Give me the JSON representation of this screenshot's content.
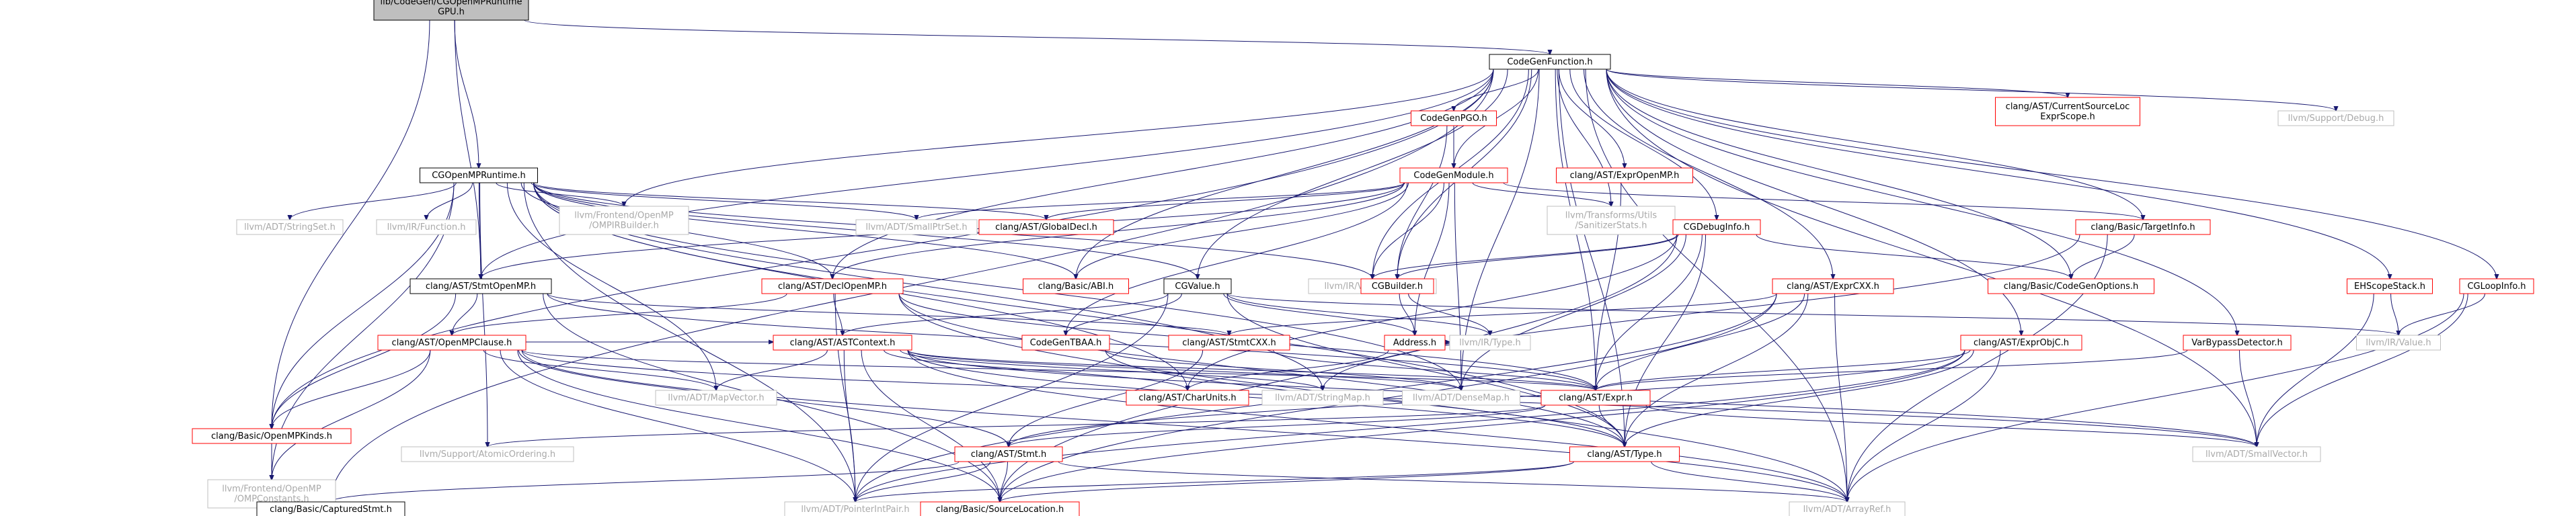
{
  "title": "Include dependency graph for lib/CodeGen/CGOpenMPRuntimeGPU.h",
  "colors": {
    "edge": "#191970",
    "text_default": "#000000",
    "text_missing": "#a9a9a9",
    "text_link": "#000000",
    "border_link": "#ff0000",
    "border_root": "#000000",
    "fill_root": "#bfbfbf",
    "border_gray": "#bfbfbf",
    "border_dark": "#000000",
    "fill": "#ffffff"
  },
  "nodes": [
    {
      "id": "root",
      "lines": [
        "lib/CodeGen/CGOpenMPRuntime",
        "GPU.h"
      ],
      "style": "root"
    },
    {
      "id": "CodeGenFunction",
      "lines": [
        "CodeGenFunction.h"
      ],
      "style": "dark"
    },
    {
      "id": "CGOpenMPRuntime",
      "lines": [
        "CGOpenMPRuntime.h"
      ],
      "style": "dark"
    },
    {
      "id": "StmtOpenMP",
      "lines": [
        "clang/AST/StmtOpenMP.h"
      ],
      "style": "dark"
    },
    {
      "id": "OpenMPKinds",
      "lines": [
        "clang/Basic/OpenMPKinds.h"
      ],
      "style": "red"
    },
    {
      "id": "StringSet",
      "lines": [
        "llvm/ADT/StringSet.h"
      ],
      "style": "gray"
    },
    {
      "id": "Function",
      "lines": [
        "llvm/IR/Function.h"
      ],
      "style": "gray"
    },
    {
      "id": "OMPIRBuilder",
      "lines": [
        "llvm/Frontend/OpenMP",
        "/OMPIRBuilder.h"
      ],
      "style": "gray"
    },
    {
      "id": "SmallPtrSet",
      "lines": [
        "llvm/ADT/SmallPtrSet.h"
      ],
      "style": "gray"
    },
    {
      "id": "GlobalDecl",
      "lines": [
        "clang/AST/GlobalDecl.h"
      ],
      "style": "red"
    },
    {
      "id": "DeclOpenMP",
      "lines": [
        "clang/AST/DeclOpenMP.h"
      ],
      "style": "red"
    },
    {
      "id": "ABI",
      "lines": [
        "clang/Basic/ABI.h"
      ],
      "style": "red"
    },
    {
      "id": "CGValue",
      "lines": [
        "CGValue.h"
      ],
      "style": "dark"
    },
    {
      "id": "ValueHandle",
      "lines": [
        "llvm/IR/ValueHandle.h"
      ],
      "style": "gray"
    },
    {
      "id": "CodeGenPGO",
      "lines": [
        "CodeGenPGO.h"
      ],
      "style": "red"
    },
    {
      "id": "CodeGenModule",
      "lines": [
        "CodeGenModule.h"
      ],
      "style": "red"
    },
    {
      "id": "ExprOpenMP",
      "lines": [
        "clang/AST/ExprOpenMP.h"
      ],
      "style": "red"
    },
    {
      "id": "CurrentSourceLoc",
      "lines": [
        "clang/AST/CurrentSourceLoc",
        "ExprScope.h"
      ],
      "style": "red"
    },
    {
      "id": "Debug",
      "lines": [
        "llvm/Support/Debug.h"
      ],
      "style": "gray"
    },
    {
      "id": "SanitizerStats",
      "lines": [
        "llvm/Transforms/Utils",
        "/SanitizerStats.h"
      ],
      "style": "gray"
    },
    {
      "id": "TargetInfo",
      "lines": [
        "clang/Basic/TargetInfo.h"
      ],
      "style": "red"
    },
    {
      "id": "CGDebugInfo",
      "lines": [
        "CGDebugInfo.h"
      ],
      "style": "red"
    },
    {
      "id": "CodeGenOptions",
      "lines": [
        "clang/Basic/CodeGenOptions.h"
      ],
      "style": "red"
    },
    {
      "id": "CGBuilder",
      "lines": [
        "CGBuilder.h"
      ],
      "style": "red"
    },
    {
      "id": "ExprCXX",
      "lines": [
        "clang/AST/ExprCXX.h"
      ],
      "style": "red"
    },
    {
      "id": "EHScopeStack",
      "lines": [
        "EHScopeStack.h"
      ],
      "style": "red"
    },
    {
      "id": "CGLoopInfo",
      "lines": [
        "CGLoopInfo.h"
      ],
      "style": "red"
    },
    {
      "id": "OpenMPClause",
      "lines": [
        "clang/AST/OpenMPClause.h"
      ],
      "style": "red"
    },
    {
      "id": "ASTContext",
      "lines": [
        "clang/AST/ASTContext.h"
      ],
      "style": "red"
    },
    {
      "id": "CodeGenTBAA",
      "lines": [
        "CodeGenTBAA.h"
      ],
      "style": "red"
    },
    {
      "id": "Address",
      "lines": [
        "Address.h"
      ],
      "style": "red"
    },
    {
      "id": "Type_IR",
      "lines": [
        "llvm/IR/Type.h"
      ],
      "style": "gray"
    },
    {
      "id": "StmtCXX",
      "lines": [
        "clang/AST/StmtCXX.h"
      ],
      "style": "red"
    },
    {
      "id": "ExprObjC",
      "lines": [
        "clang/AST/ExprObjC.h"
      ],
      "style": "red"
    },
    {
      "id": "VarBypassDetector",
      "lines": [
        "VarBypassDetector.h"
      ],
      "style": "red"
    },
    {
      "id": "Value_IR",
      "lines": [
        "llvm/IR/Value.h"
      ],
      "style": "gray"
    },
    {
      "id": "OMPConstants",
      "lines": [
        "llvm/Frontend/OpenMP",
        "/OMPConstants.h"
      ],
      "style": "gray"
    },
    {
      "id": "MapVector",
      "lines": [
        "llvm/ADT/MapVector.h"
      ],
      "style": "gray"
    },
    {
      "id": "CharUnits",
      "lines": [
        "clang/AST/CharUnits.h"
      ],
      "style": "red"
    },
    {
      "id": "StringMap",
      "lines": [
        "llvm/ADT/StringMap.h"
      ],
      "style": "gray"
    },
    {
      "id": "DenseMap",
      "lines": [
        "llvm/ADT/DenseMap.h"
      ],
      "style": "gray"
    },
    {
      "id": "Expr",
      "lines": [
        "clang/AST/Expr.h"
      ],
      "style": "red"
    },
    {
      "id": "AtomicOrdering",
      "lines": [
        "llvm/Support/AtomicOrdering.h"
      ],
      "style": "gray"
    },
    {
      "id": "Stmt",
      "lines": [
        "clang/AST/Stmt.h"
      ],
      "style": "red"
    },
    {
      "id": "Type_AST",
      "lines": [
        "clang/AST/Type.h"
      ],
      "style": "red"
    },
    {
      "id": "SmallVector",
      "lines": [
        "llvm/ADT/SmallVector.h"
      ],
      "style": "gray"
    },
    {
      "id": "CapturedStmt",
      "lines": [
        "clang/Basic/CapturedStmt.h"
      ],
      "style": "dark"
    },
    {
      "id": "PointerIntPair",
      "lines": [
        "llvm/ADT/PointerIntPair.h"
      ],
      "style": "gray"
    },
    {
      "id": "SourceLocation",
      "lines": [
        "clang/Basic/SourceLocation.h"
      ],
      "style": "red"
    },
    {
      "id": "ArrayRef",
      "lines": [
        "llvm/ADT/ArrayRef.h"
      ],
      "style": "gray"
    }
  ],
  "edges": [
    [
      "root",
      "CodeGenFunction"
    ],
    [
      "root",
      "CGOpenMPRuntime"
    ],
    [
      "root",
      "StmtOpenMP"
    ],
    [
      "root",
      "OpenMPKinds"
    ],
    [
      "CodeGenFunction",
      "CodeGenPGO"
    ],
    [
      "CodeGenFunction",
      "CodeGenModule"
    ],
    [
      "CodeGenFunction",
      "ExprOpenMP"
    ],
    [
      "CodeGenFunction",
      "CurrentSourceLoc"
    ],
    [
      "CodeGenFunction",
      "Debug"
    ],
    [
      "CodeGenFunction",
      "SanitizerStats"
    ],
    [
      "CodeGenFunction",
      "TargetInfo"
    ],
    [
      "CodeGenFunction",
      "CGDebugInfo"
    ],
    [
      "CodeGenFunction",
      "CodeGenOptions"
    ],
    [
      "CodeGenFunction",
      "CGBuilder"
    ],
    [
      "CodeGenFunction",
      "ExprCXX"
    ],
    [
      "CodeGenFunction",
      "EHScopeStack"
    ],
    [
      "CodeGenFunction",
      "CGLoopInfo"
    ],
    [
      "CodeGenFunction",
      "VarBypassDetector"
    ],
    [
      "CodeGenFunction",
      "ExprObjC"
    ],
    [
      "CodeGenFunction",
      "CGValue"
    ],
    [
      "CodeGenFunction",
      "ABI"
    ],
    [
      "CodeGenFunction",
      "ValueHandle"
    ],
    [
      "CodeGenFunction",
      "OMPIRBuilder"
    ],
    [
      "CodeGenFunction",
      "CapturedStmt"
    ],
    [
      "CodeGenFunction",
      "Type_AST"
    ],
    [
      "CodeGenFunction",
      "SmallVector"
    ],
    [
      "CodeGenFunction",
      "ArrayRef"
    ],
    [
      "CodeGenFunction",
      "StmtOpenMP"
    ],
    [
      "CodeGenFunction",
      "OpenMPKinds"
    ],
    [
      "CodeGenFunction",
      "DeclOpenMP"
    ],
    [
      "CodeGenFunction",
      "Expr"
    ],
    [
      "CodeGenFunction",
      "DenseMap"
    ],
    [
      "CGOpenMPRuntime",
      "StringSet"
    ],
    [
      "CGOpenMPRuntime",
      "Function"
    ],
    [
      "CGOpenMPRuntime",
      "OMPIRBuilder"
    ],
    [
      "CGOpenMPRuntime",
      "SmallPtrSet"
    ],
    [
      "CGOpenMPRuntime",
      "GlobalDecl"
    ],
    [
      "CGOpenMPRuntime",
      "ABI"
    ],
    [
      "CGOpenMPRuntime",
      "CGValue"
    ],
    [
      "CGOpenMPRuntime",
      "ValueHandle"
    ],
    [
      "CGOpenMPRuntime",
      "StmtOpenMP"
    ],
    [
      "CGOpenMPRuntime",
      "DeclOpenMP"
    ],
    [
      "CGOpenMPRuntime",
      "OpenMPKinds"
    ],
    [
      "CGOpenMPRuntime",
      "OMPConstants"
    ],
    [
      "CGOpenMPRuntime",
      "MapVector"
    ],
    [
      "CGOpenMPRuntime",
      "DenseMap"
    ],
    [
      "CGOpenMPRuntime",
      "StringMap"
    ],
    [
      "CGOpenMPRuntime",
      "AtomicOrdering"
    ],
    [
      "CGOpenMPRuntime",
      "Type_AST"
    ],
    [
      "CGOpenMPRuntime",
      "PointerIntPair"
    ],
    [
      "CGOpenMPRuntime",
      "CharUnits"
    ],
    [
      "CodeGenPGO",
      "CodeGenModule"
    ],
    [
      "CodeGenPGO",
      "CGBuilder"
    ],
    [
      "CodeGenModule",
      "GlobalDecl"
    ],
    [
      "CodeGenModule",
      "SmallPtrSet"
    ],
    [
      "CodeGenModule",
      "SanitizerStats"
    ],
    [
      "CodeGenModule",
      "TargetInfo"
    ],
    [
      "CodeGenModule",
      "ValueHandle"
    ],
    [
      "CodeGenModule",
      "ABI"
    ],
    [
      "CodeGenModule",
      "DeclOpenMP"
    ],
    [
      "CodeGenModule",
      "StmtOpenMP"
    ],
    [
      "CodeGenModule",
      "CodeGenTBAA"
    ],
    [
      "CodeGenModule",
      "Address"
    ],
    [
      "CodeGenModule",
      "DenseMap"
    ],
    [
      "ExprOpenMP",
      "Expr"
    ],
    [
      "TargetInfo",
      "CodeGenOptions"
    ],
    [
      "TargetInfo",
      "ArrayRef"
    ],
    [
      "TargetInfo",
      "StringMap"
    ],
    [
      "CGDebugInfo",
      "CGBuilder"
    ],
    [
      "CGDebugInfo",
      "CodeGenOptions"
    ],
    [
      "CGDebugInfo",
      "ValueHandle"
    ],
    [
      "CGDebugInfo",
      "Expr"
    ],
    [
      "CGDebugInfo",
      "Type_AST"
    ],
    [
      "CGDebugInfo",
      "DenseMap"
    ],
    [
      "CGDebugInfo",
      "SourceLocation"
    ],
    [
      "CGDebugInfo",
      "CharUnits"
    ],
    [
      "CGBuilder",
      "Address"
    ],
    [
      "CGBuilder",
      "Type_IR"
    ],
    [
      "ExprCXX",
      "StmtCXX"
    ],
    [
      "ExprCXX",
      "Expr"
    ],
    [
      "ExprCXX",
      "Type_AST"
    ],
    [
      "ExprCXX",
      "SourceLocation"
    ],
    [
      "ExprCXX",
      "ArrayRef"
    ],
    [
      "ExprCXX",
      "PointerIntPair"
    ],
    [
      "EHScopeStack",
      "SmallVector"
    ],
    [
      "EHScopeStack",
      "Value_IR"
    ],
    [
      "CGLoopInfo",
      "SmallVector"
    ],
    [
      "CGLoopInfo",
      "ArrayRef"
    ],
    [
      "CGLoopInfo",
      "Value_IR"
    ],
    [
      "VarBypassDetector",
      "SmallVector"
    ],
    [
      "VarBypassDetector",
      "Expr"
    ],
    [
      "ExprObjC",
      "Expr"
    ],
    [
      "ExprObjC",
      "Type_AST"
    ],
    [
      "ExprObjC",
      "SourceLocation"
    ],
    [
      "ExprObjC",
      "ArrayRef"
    ],
    [
      "ExprObjC",
      "PointerIntPair"
    ],
    [
      "ExprObjC",
      "Stmt"
    ],
    [
      "CGValue",
      "ASTContext"
    ],
    [
      "CGValue",
      "CodeGenTBAA"
    ],
    [
      "CGValue",
      "Address"
    ],
    [
      "CGValue",
      "Value_IR"
    ],
    [
      "CGValue",
      "Type_IR"
    ],
    [
      "CGValue",
      "Type_AST"
    ],
    [
      "CGValue",
      "PointerIntPair"
    ],
    [
      "StmtOpenMP",
      "OpenMPClause"
    ],
    [
      "StmtOpenMP",
      "StmtCXX"
    ],
    [
      "StmtOpenMP",
      "Expr"
    ],
    [
      "StmtOpenMP",
      "OpenMPKinds"
    ],
    [
      "StmtOpenMP",
      "SourceLocation"
    ],
    [
      "DeclOpenMP",
      "ASTContext"
    ],
    [
      "DeclOpenMP",
      "OpenMPClause"
    ],
    [
      "DeclOpenMP",
      "Expr"
    ],
    [
      "DeclOpenMP",
      "Type_AST"
    ],
    [
      "DeclOpenMP",
      "ArrayRef"
    ],
    [
      "DeclOpenMP",
      "PointerIntPair"
    ],
    [
      "OpenMPClause",
      "OpenMPKinds"
    ],
    [
      "OpenMPClause",
      "OMPConstants"
    ],
    [
      "OpenMPClause",
      "MapVector"
    ],
    [
      "OpenMPClause",
      "Expr"
    ],
    [
      "OpenMPClause",
      "Stmt"
    ],
    [
      "OpenMPClause",
      "SourceLocation"
    ],
    [
      "OpenMPClause",
      "ArrayRef"
    ],
    [
      "OpenMPClause",
      "PointerIntPair"
    ],
    [
      "OpenMPClause",
      "SmallVector"
    ],
    [
      "OpenMPClause",
      "ASTContext"
    ],
    [
      "ASTContext",
      "CharUnits"
    ],
    [
      "ASTContext",
      "StringMap"
    ],
    [
      "ASTContext",
      "DenseMap"
    ],
    [
      "ASTContext",
      "Expr"
    ],
    [
      "ASTContext",
      "MapVector"
    ],
    [
      "ASTContext",
      "Type_AST"
    ],
    [
      "ASTContext",
      "SourceLocation"
    ],
    [
      "ASTContext",
      "ArrayRef"
    ],
    [
      "ASTContext",
      "PointerIntPair"
    ],
    [
      "ASTContext",
      "SmallVector"
    ],
    [
      "CodeGenTBAA",
      "Type_AST"
    ],
    [
      "CodeGenTBAA",
      "DenseMap"
    ],
    [
      "Address",
      "CharUnits"
    ],
    [
      "Address",
      "Type_IR"
    ],
    [
      "StmtCXX",
      "Stmt"
    ],
    [
      "StmtCXX",
      "Expr"
    ],
    [
      "Expr",
      "Stmt"
    ],
    [
      "Expr",
      "Type_AST"
    ],
    [
      "Expr",
      "SmallVector"
    ],
    [
      "Expr",
      "AtomicOrdering"
    ],
    [
      "Stmt",
      "CapturedStmt"
    ],
    [
      "Stmt",
      "PointerIntPair"
    ],
    [
      "Stmt",
      "SourceLocation"
    ],
    [
      "Stmt",
      "ArrayRef"
    ],
    [
      "Type_AST",
      "SourceLocation"
    ],
    [
      "Type_AST",
      "ArrayRef"
    ],
    [
      "Type_AST",
      "PointerIntPair"
    ],
    [
      "OpenMPKinds",
      "OMPConstants"
    ]
  ]
}
